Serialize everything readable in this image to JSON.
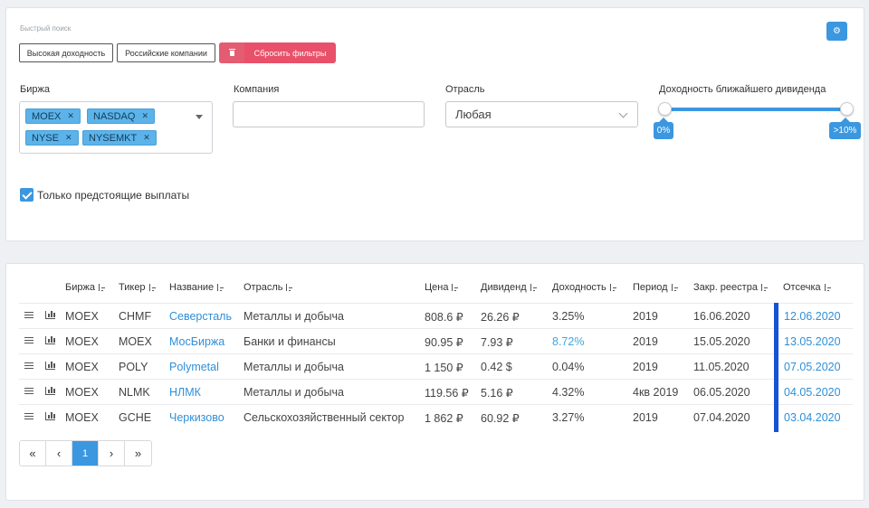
{
  "filters": {
    "quick_search_label": "Быстрый поиск",
    "quick_buttons": [
      "Высокая доходность",
      "Российские компании"
    ],
    "reset_label": "Сбросить фильтры",
    "exchange": {
      "label": "Биржа",
      "chips": [
        "MOEX",
        "NASDAQ",
        "NYSE",
        "NYSEMKT"
      ]
    },
    "company": {
      "label": "Компания",
      "value": ""
    },
    "sector": {
      "label": "Отрасль",
      "value": "Любая"
    },
    "yield_slider": {
      "label": "Доходность ближайшего дивиденда",
      "min_label": "0%",
      "max_label": ">10%"
    },
    "upcoming": {
      "label": "Только предстоящие выплаты",
      "checked": true
    }
  },
  "table": {
    "headers": [
      "Биржа",
      "Тикер",
      "Название",
      "Отрасль",
      "Цена",
      "Дивиденд",
      "Доходность",
      "Период",
      "Закр. реестра",
      "Отсечка"
    ],
    "rows": [
      {
        "exchange": "MOEX",
        "ticker": "CHMF",
        "name": "Северсталь",
        "sector": "Металлы и добыча",
        "price": "808.6 ₽",
        "dividend": "26.26 ₽",
        "yield": "3.25%",
        "period": "2019",
        "registry": "16.06.2020",
        "cutoff": "12.06.2020"
      },
      {
        "exchange": "MOEX",
        "ticker": "MOEX",
        "name": "МосБиржа",
        "sector": "Банки и финансы",
        "price": "90.95 ₽",
        "dividend": "7.93 ₽",
        "yield": "8.72%",
        "period": "2019",
        "registry": "15.05.2020",
        "cutoff": "13.05.2020"
      },
      {
        "exchange": "MOEX",
        "ticker": "POLY",
        "name": "Polymetal",
        "sector": "Металлы и добыча",
        "price": "1 150 ₽",
        "dividend": "0.42 $",
        "yield": "0.04%",
        "period": "2019",
        "registry": "11.05.2020",
        "cutoff": "07.05.2020"
      },
      {
        "exchange": "MOEX",
        "ticker": "NLMK",
        "name": "НЛМК",
        "sector": "Металлы и добыча",
        "price": "119.56 ₽",
        "dividend": "5.16 ₽",
        "yield": "4.32%",
        "period": "4кв 2019",
        "registry": "06.05.2020",
        "cutoff": "04.05.2020"
      },
      {
        "exchange": "MOEX",
        "ticker": "GCHE",
        "name": "Черкизово",
        "sector": "Сельскохозяйственный сектор",
        "price": "1 862 ₽",
        "dividend": "60.92 ₽",
        "yield": "3.27%",
        "period": "2019",
        "registry": "07.04.2020",
        "cutoff": "03.04.2020"
      }
    ]
  },
  "pagination": {
    "first": "«",
    "prev": "‹",
    "current": "1",
    "next": "›",
    "last": "»"
  },
  "colors": {
    "accent": "#3b97e0",
    "danger": "#e9506a",
    "cutoff_bar": "#1553d4",
    "link": "#2f8fd8"
  }
}
